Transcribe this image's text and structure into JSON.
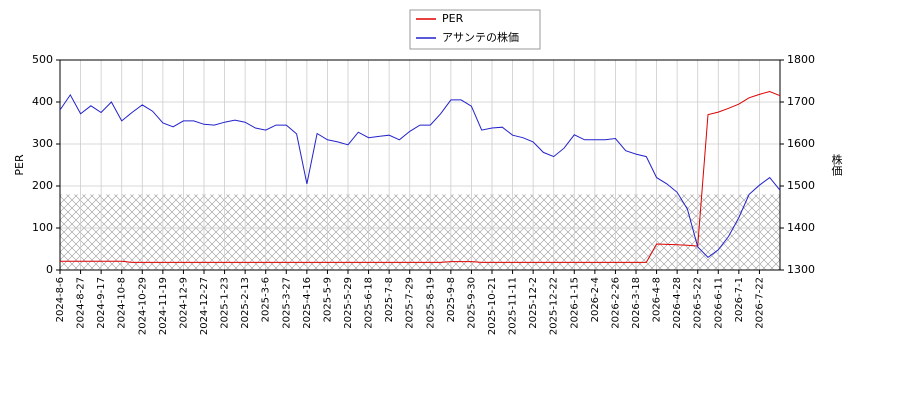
{
  "chart_data": {
    "type": "line",
    "x": [
      "2024-8-6",
      null,
      "2024-8-27",
      null,
      "2024-9-17",
      null,
      "2024-10-8",
      null,
      "2024-10-29",
      null,
      "2024-11-19",
      null,
      "2024-12-9",
      null,
      "2024-12-27",
      null,
      "2025-1-23",
      null,
      "2025-2-13",
      null,
      "2025-3-6",
      null,
      "2025-3-27",
      null,
      "2025-4-16",
      null,
      "2025-5-9",
      null,
      "2025-5-29",
      null,
      "2025-6-18",
      null,
      "2025-7-8",
      null,
      "2025-7-29",
      null,
      "2025-8-19",
      null,
      "2025-9-8",
      null,
      "2025-9-30",
      null,
      "2025-10-21",
      null,
      "2025-11-11",
      null,
      "2025-12-2",
      null,
      "2025-12-22",
      null,
      "2026-1-15",
      null,
      "2026-2-4",
      null,
      "2026-2-26",
      null,
      "2026-3-18",
      null,
      "2026-4-8",
      null,
      "2026-4-28",
      null,
      "2026-5-22",
      null,
      "2026-6-11",
      null,
      "2026-7-1",
      null,
      "2026-7-22",
      null,
      null
    ],
    "series": [
      {
        "name": "PER",
        "color": "#dd0000",
        "axis": "y",
        "values": [
          21,
          21,
          21,
          21,
          21,
          21,
          21,
          18,
          18,
          18,
          18,
          18,
          18,
          18,
          18,
          18,
          18,
          18,
          18,
          18,
          18,
          18,
          18,
          18,
          18,
          18,
          18,
          18,
          18,
          18,
          18,
          18,
          18,
          18,
          18,
          18,
          18,
          18,
          20,
          20,
          20,
          18,
          18,
          18,
          18,
          18,
          18,
          18,
          18,
          18,
          18,
          18,
          18,
          18,
          18,
          18,
          18,
          18,
          62,
          61,
          60,
          59,
          57,
          370,
          376,
          385,
          395,
          410,
          418,
          425,
          415
        ]
      },
      {
        "name": "アサンテの株価",
        "color": "#2222cc",
        "axis": "y2",
        "values": [
          1681,
          1717,
          1672,
          1691,
          1675,
          1700,
          1655,
          1675,
          1693,
          1678,
          1650,
          1641,
          1655,
          1655,
          1647,
          1645,
          1652,
          1657,
          1652,
          1638,
          1633,
          1645,
          1645,
          1624,
          1505,
          1625,
          1610,
          1605,
          1598,
          1628,
          1615,
          1618,
          1621,
          1610,
          1630,
          1645,
          1645,
          1672,
          1705,
          1705,
          1690,
          1633,
          1638,
          1640,
          1621,
          1615,
          1605,
          1580,
          1570,
          1590,
          1622,
          1610,
          1610,
          1610,
          1613,
          1584,
          1576,
          1570,
          1520,
          1505,
          1485,
          1445,
          1355,
          1330,
          1348,
          1380,
          1425,
          1480,
          1502,
          1520,
          1490
        ]
      }
    ],
    "ylabel": "PER",
    "y2label": "株価",
    "ylim": [
      0,
      500
    ],
    "yticks": [
      0,
      100,
      200,
      300,
      400,
      500
    ],
    "y2lim": [
      1300,
      1800
    ],
    "y2ticks": [
      1300,
      1400,
      1500,
      1600,
      1700,
      1800
    ],
    "hatch_ylim": [
      0,
      180
    ],
    "grid": true,
    "legend": "top"
  }
}
